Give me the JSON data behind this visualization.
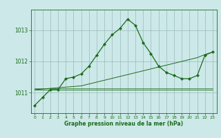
{
  "hours": [
    0,
    1,
    2,
    3,
    4,
    5,
    6,
    7,
    8,
    9,
    10,
    11,
    12,
    13,
    14,
    15,
    16,
    17,
    18,
    19,
    20,
    21,
    22,
    23
  ],
  "line_main": [
    1010.6,
    1010.85,
    1011.1,
    1011.1,
    1011.45,
    1011.5,
    1011.6,
    1011.85,
    1012.2,
    1012.55,
    1012.85,
    1013.05,
    1013.35,
    1013.15,
    1012.6,
    1012.25,
    1011.85,
    1011.65,
    1011.55,
    1011.45,
    1011.45,
    1011.55,
    1012.2,
    1012.3
  ],
  "line_diag": [
    1011.1,
    1011.12,
    1011.14,
    1011.16,
    1011.18,
    1011.2,
    1011.22,
    1011.28,
    1011.34,
    1011.4,
    1011.46,
    1011.52,
    1011.58,
    1011.64,
    1011.7,
    1011.76,
    1011.82,
    1011.88,
    1011.94,
    1012.0,
    1012.06,
    1012.12,
    1012.22,
    1012.3
  ],
  "line_flat1": [
    1011.1,
    1011.1,
    1011.1,
    1011.1,
    1011.1,
    1011.1,
    1011.1,
    1011.1,
    1011.1,
    1011.1,
    1011.1,
    1011.1,
    1011.1,
    1011.1,
    1011.1,
    1011.1,
    1011.1,
    1011.1,
    1011.1,
    1011.1,
    1011.1,
    1011.1,
    1011.1,
    1011.1
  ],
  "line_flat2": [
    1011.15,
    1011.15,
    1011.15,
    1011.15,
    1011.15,
    1011.15,
    1011.15,
    1011.15,
    1011.15,
    1011.15,
    1011.15,
    1011.15,
    1011.15,
    1011.15,
    1011.15,
    1011.15,
    1011.15,
    1011.15,
    1011.15,
    1011.15,
    1011.15,
    1011.15,
    1011.15,
    1011.15
  ],
  "bg_color": "#cce8e8",
  "line_color": "#1a6b1a",
  "grid_color": "#99bbbb",
  "ylabel_ticks": [
    1011,
    1012,
    1013
  ],
  "ylim": [
    1010.35,
    1013.65
  ],
  "xlim": [
    -0.5,
    23.5
  ],
  "xlabel": "Graphe pression niveau de la mer (hPa)",
  "label_color": "#1a6b1a"
}
